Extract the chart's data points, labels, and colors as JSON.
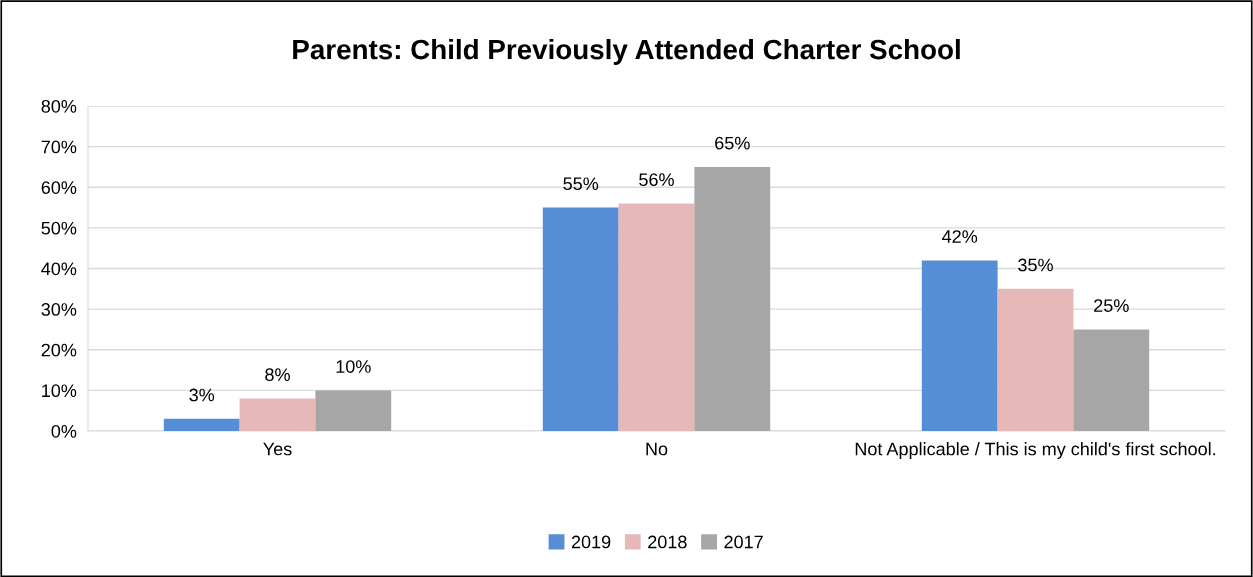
{
  "chart_data": {
    "type": "bar",
    "title": "Parents: Child Previously Attended Charter School",
    "categories": [
      "Yes",
      "No",
      "Not Applicable / This is my child's first school."
    ],
    "series": [
      {
        "name": "2019",
        "color": "#558ed5",
        "values": [
          3,
          55,
          42
        ]
      },
      {
        "name": "2018",
        "color": "#e6b9b8",
        "values": [
          8,
          56,
          35
        ]
      },
      {
        "name": "2017",
        "color": "#a6a6a6",
        "values": [
          10,
          65,
          25
        ]
      }
    ],
    "ylim": [
      0,
      80
    ],
    "yticks": [
      {
        "value": 0,
        "label": "0%"
      },
      {
        "value": 10,
        "label": "10%"
      },
      {
        "value": 20,
        "label": "20%"
      },
      {
        "value": 30,
        "label": "30%"
      },
      {
        "value": 40,
        "label": "40%"
      },
      {
        "value": 50,
        "label": "50%"
      },
      {
        "value": 60,
        "label": "60%"
      },
      {
        "value": 70,
        "label": "70%"
      },
      {
        "value": 80,
        "label": "80%"
      }
    ],
    "value_labels": [
      [
        "3%",
        "55%",
        "42%"
      ],
      [
        "8%",
        "56%",
        "35%"
      ],
      [
        "10%",
        "65%",
        "25%"
      ]
    ],
    "grid": "y",
    "legend": "bottom"
  }
}
